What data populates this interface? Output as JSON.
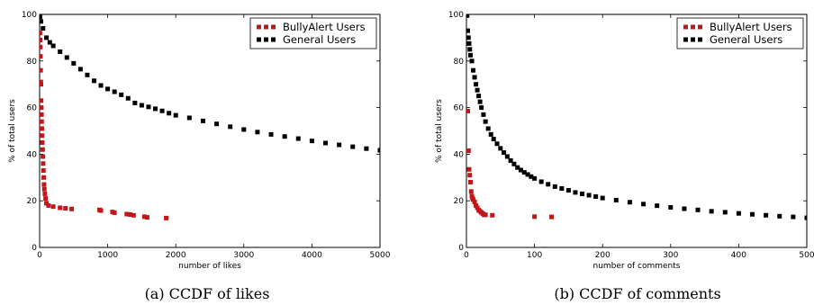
{
  "chart_data": [
    {
      "type": "scatter",
      "caption": "(a) CCDF of likes",
      "xlabel": "number of likes",
      "ylabel": "% of total users",
      "xlim": [
        0,
        5000
      ],
      "ylim": [
        0,
        100
      ],
      "xticks": [
        0,
        1000,
        2000,
        3000,
        4000,
        5000
      ],
      "yticks": [
        0,
        20,
        40,
        60,
        80,
        100
      ],
      "legend_position": "top-right",
      "series": [
        {
          "name": "BullyAlert Users",
          "color": "#c0181a",
          "points": [
            [
              5,
              92
            ],
            [
              7,
              89
            ],
            [
              10,
              86
            ],
            [
              12,
              82
            ],
            [
              15,
              76
            ],
            [
              17,
              71
            ],
            [
              20,
              70
            ],
            [
              22,
              63
            ],
            [
              25,
              60
            ],
            [
              28,
              57
            ],
            [
              30,
              54
            ],
            [
              33,
              51
            ],
            [
              36,
              48
            ],
            [
              40,
              45
            ],
            [
              44,
              42
            ],
            [
              48,
              39
            ],
            [
              52,
              36
            ],
            [
              56,
              33
            ],
            [
              60,
              30
            ],
            [
              65,
              27
            ],
            [
              70,
              25
            ],
            [
              78,
              23
            ],
            [
              88,
              21
            ],
            [
              100,
              19
            ],
            [
              130,
              18
            ],
            [
              200,
              17.5
            ],
            [
              300,
              17
            ],
            [
              380,
              16.8
            ],
            [
              470,
              16.5
            ],
            [
              880,
              16.1
            ],
            [
              900,
              15.8
            ],
            [
              1070,
              15.2
            ],
            [
              1100,
              14.9
            ],
            [
              1280,
              14.3
            ],
            [
              1330,
              14.1
            ],
            [
              1380,
              13.8
            ],
            [
              1540,
              13.2
            ],
            [
              1580,
              12.9
            ],
            [
              1860,
              12.6
            ]
          ]
        },
        {
          "name": "General Users",
          "color": "#000000",
          "points": [
            [
              5,
              99
            ],
            [
              20,
              97
            ],
            [
              50,
              94
            ],
            [
              100,
              90
            ],
            [
              150,
              88
            ],
            [
              200,
              86.5
            ],
            [
              300,
              84
            ],
            [
              400,
              81.5
            ],
            [
              500,
              79
            ],
            [
              600,
              76.5
            ],
            [
              700,
              74
            ],
            [
              800,
              71.5
            ],
            [
              900,
              69.5
            ],
            [
              1000,
              68
            ],
            [
              1100,
              66.8
            ],
            [
              1200,
              65.5
            ],
            [
              1300,
              64
            ],
            [
              1400,
              62
            ],
            [
              1500,
              61
            ],
            [
              1600,
              60.3
            ],
            [
              1700,
              59.5
            ],
            [
              1800,
              58.6
            ],
            [
              1900,
              57.6
            ],
            [
              2000,
              56.7
            ],
            [
              2200,
              55.6
            ],
            [
              2400,
              54.3
            ],
            [
              2600,
              53
            ],
            [
              2800,
              51.8
            ],
            [
              3000,
              50.6
            ],
            [
              3200,
              49.5
            ],
            [
              3400,
              48.5
            ],
            [
              3600,
              47.6
            ],
            [
              3800,
              46.7
            ],
            [
              4000,
              45.7
            ],
            [
              4200,
              44.8
            ],
            [
              4400,
              44
            ],
            [
              4600,
              43.2
            ],
            [
              4800,
              42.4
            ],
            [
              5000,
              41.7
            ]
          ]
        }
      ]
    },
    {
      "type": "scatter",
      "caption": "(b) CCDF of comments",
      "xlabel": "number of comments",
      "ylabel": "% of total users",
      "xlim": [
        0,
        500
      ],
      "ylim": [
        0,
        100
      ],
      "xticks": [
        0,
        100,
        200,
        300,
        400,
        500
      ],
      "yticks": [
        0,
        20,
        40,
        60,
        80,
        100
      ],
      "legend_position": "top-right",
      "series": [
        {
          "name": "BullyAlert Users",
          "color": "#c0181a",
          "points": [
            [
              2,
              58.5
            ],
            [
              3,
              41.5
            ],
            [
              4,
              33.5
            ],
            [
              5,
              31
            ],
            [
              6,
              28
            ],
            [
              7,
              24
            ],
            [
              8,
              22
            ],
            [
              9,
              21
            ],
            [
              10,
              20.5
            ],
            [
              12,
              19.5
            ],
            [
              14,
              18
            ],
            [
              16,
              17
            ],
            [
              18,
              16
            ],
            [
              20,
              15.5
            ],
            [
              22,
              15
            ],
            [
              24,
              14.5
            ],
            [
              26,
              14
            ],
            [
              28,
              14
            ],
            [
              38,
              13.8
            ],
            [
              100,
              13.2
            ],
            [
              125,
              13.1
            ]
          ]
        },
        {
          "name": "General Users",
          "color": "#000000",
          "points": [
            [
              1,
              99.5
            ],
            [
              2,
              93
            ],
            [
              3,
              90
            ],
            [
              4,
              87.5
            ],
            [
              5,
              85
            ],
            [
              6,
              82.5
            ],
            [
              8,
              80
            ],
            [
              10,
              76
            ],
            [
              12,
              73
            ],
            [
              14,
              70
            ],
            [
              16,
              67.5
            ],
            [
              18,
              65
            ],
            [
              20,
              62.5
            ],
            [
              22,
              60
            ],
            [
              25,
              57
            ],
            [
              28,
              54
            ],
            [
              32,
              51
            ],
            [
              36,
              48.5
            ],
            [
              40,
              46.5
            ],
            [
              45,
              44.5
            ],
            [
              50,
              42.5
            ],
            [
              55,
              40.7
            ],
            [
              60,
              39
            ],
            [
              65,
              37.3
            ],
            [
              70,
              35.8
            ],
            [
              75,
              34.3
            ],
            [
              80,
              33.2
            ],
            [
              85,
              32.2
            ],
            [
              90,
              31.3
            ],
            [
              95,
              30.4
            ],
            [
              100,
              29.6
            ],
            [
              110,
              28.2
            ],
            [
              120,
              27.1
            ],
            [
              130,
              26.1
            ],
            [
              140,
              25.3
            ],
            [
              150,
              24.5
            ],
            [
              160,
              23.6
            ],
            [
              170,
              23
            ],
            [
              180,
              22.4
            ],
            [
              190,
              21.8
            ],
            [
              200,
              21.2
            ],
            [
              220,
              20.3
            ],
            [
              240,
              19.4
            ],
            [
              260,
              18.6
            ],
            [
              280,
              17.9
            ],
            [
              300,
              17.2
            ],
            [
              320,
              16.6
            ],
            [
              340,
              16.1
            ],
            [
              360,
              15.5
            ],
            [
              380,
              15.1
            ],
            [
              400,
              14.6
            ],
            [
              420,
              14.2
            ],
            [
              440,
              13.8
            ],
            [
              460,
              13.4
            ],
            [
              480,
              13.1
            ],
            [
              500,
              12.7
            ]
          ]
        }
      ]
    }
  ]
}
